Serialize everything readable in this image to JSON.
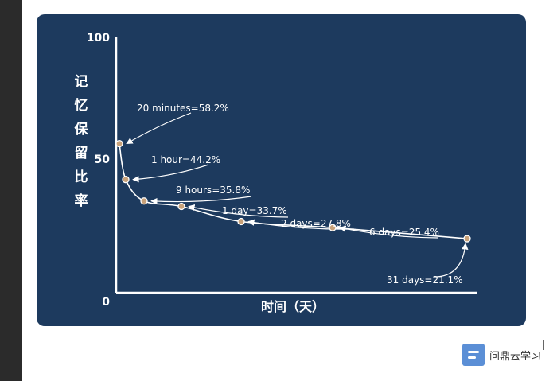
{
  "chart_data": {
    "type": "line",
    "ylabel": "记忆保留比率",
    "xlabel": "时间（天）",
    "ylim": [
      0,
      100
    ],
    "yticks": [
      "100",
      "50",
      "0"
    ],
    "grid": false,
    "points": [
      {
        "label": "20 minutes=58.2%",
        "time": "20 minutes",
        "y": 58.2
      },
      {
        "label": "1 hour=44.2%",
        "time": "1 hour",
        "y": 44.2
      },
      {
        "label": "9 hours=35.8%",
        "time": "9 hours",
        "y": 35.8
      },
      {
        "label": "1 day=33.7%",
        "time": "1 day",
        "y": 33.7
      },
      {
        "label": "2 days=27.8%",
        "time": "2 days",
        "y": 27.8
      },
      {
        "label": "6 days=25.4%",
        "time": "6 days",
        "y": 25.4
      },
      {
        "label": "31 days=21.1%",
        "time": "31 days",
        "y": 21.1
      }
    ],
    "colors": {
      "background": "#1d3a5e",
      "curve": "#ffffff",
      "marker": "#c9a27a"
    }
  },
  "watermark": {
    "text": "问鼎云学习"
  }
}
